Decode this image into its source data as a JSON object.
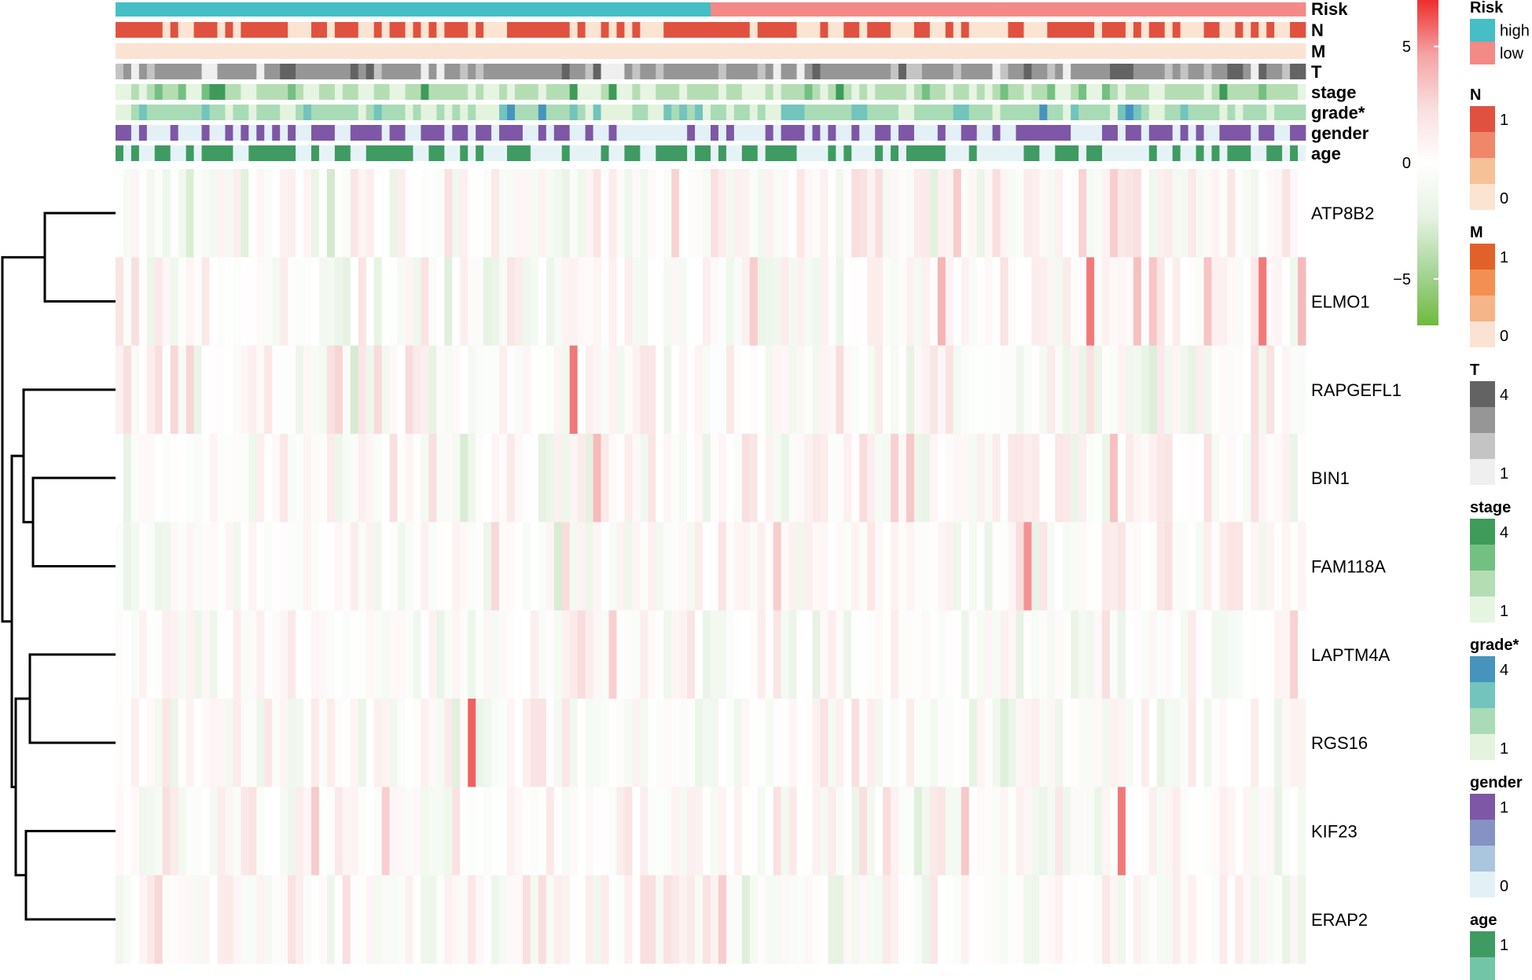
{
  "chart_data": {
    "type": "heatmap",
    "title": "",
    "n_samples": 152,
    "high_risk_count": 76,
    "tracks": [
      {
        "key": "risk",
        "label": "Risk"
      },
      {
        "key": "N",
        "label": "N"
      },
      {
        "key": "M",
        "label": "M"
      },
      {
        "key": "T",
        "label": "T"
      },
      {
        "key": "stage",
        "label": "stage"
      },
      {
        "key": "grade",
        "label": "grade*"
      },
      {
        "key": "gender",
        "label": "gender"
      },
      {
        "key": "age",
        "label": "age"
      }
    ],
    "genes": [
      "ATP8B2",
      "ELMO1",
      "RAPGEFL1",
      "BIN1",
      "FAM118A",
      "LAPTM4A",
      "RGS16",
      "KIF23",
      "ERAP2"
    ],
    "gene_bias": {
      "ATP8B2": [
        -0.25,
        0.45
      ],
      "ELMO1": [
        -0.2,
        0.25
      ],
      "RAPGEFL1": [
        0.45,
        -0.35
      ],
      "BIN1": [
        0.2,
        0.2
      ],
      "FAM118A": [
        0.05,
        0.3
      ],
      "LAPTM4A": [
        0.3,
        0.0
      ],
      "RGS16": [
        0.25,
        -0.15
      ],
      "KIF23": [
        0.25,
        -0.1
      ],
      "ERAP2": [
        0.4,
        -0.1
      ]
    },
    "expression_highlights": [
      {
        "gene": "ELMO1",
        "col": 124,
        "value": 5.5
      },
      {
        "gene": "ELMO1",
        "col": 146,
        "value": 5.5
      },
      {
        "gene": "ELMO1",
        "col": 105,
        "value": 4.0
      },
      {
        "gene": "RAPGEFL1",
        "col": 58,
        "value": 5.5
      },
      {
        "gene": "RGS16",
        "col": 45,
        "value": 6.0
      },
      {
        "gene": "BIN1",
        "col": 127,
        "value": 3.5
      },
      {
        "gene": "FAM118A",
        "col": 116,
        "value": 5.0
      },
      {
        "gene": "KIF23",
        "col": 128,
        "value": 5.5
      },
      {
        "gene": "ERAP2",
        "col": 77,
        "value": 3.0
      }
    ],
    "color_scale": {
      "min": -7,
      "max": 7,
      "colors": [
        "#6fba3c",
        "#a8d59a",
        "#e7f2e3",
        "#ffffff",
        "#f9dede",
        "#f4a3a5",
        "#ee2e2e"
      ],
      "ticks": [
        {
          "value": 5,
          "label": "5"
        },
        {
          "value": 0,
          "label": "0"
        },
        {
          "value": -5,
          "label": "−5"
        }
      ]
    },
    "legends": [
      {
        "key": "risk",
        "title": "Risk",
        "type": "categorical",
        "items": [
          {
            "label": "high",
            "color": "#45bec6"
          },
          {
            "label": "low",
            "color": "#f38a86"
          }
        ]
      },
      {
        "key": "N",
        "title": "N",
        "type": "levels",
        "top_label": "1",
        "bottom_label": "0",
        "colors": [
          "#e0523f",
          "#f0866a",
          "#f6c196",
          "#fbe4d2"
        ]
      },
      {
        "key": "M",
        "title": "M",
        "type": "levels",
        "top_label": "1",
        "bottom_label": "0",
        "colors": [
          "#e2612a",
          "#f38f52",
          "#f6b588",
          "#fbe3d4"
        ]
      },
      {
        "key": "T",
        "title": "T",
        "type": "levels",
        "top_label": "4",
        "bottom_label": "1",
        "colors": [
          "#636363",
          "#969696",
          "#c4c4c4",
          "#efefef"
        ]
      },
      {
        "key": "stage",
        "title": "stage",
        "type": "levels",
        "top_label": "4",
        "bottom_label": "1",
        "colors": [
          "#3e9b5a",
          "#74c082",
          "#b5ddb4",
          "#e6f4e2"
        ]
      },
      {
        "key": "grade",
        "title": "grade*",
        "type": "levels",
        "top_label": "4",
        "bottom_label": "1",
        "colors": [
          "#4694be",
          "#72c4bc",
          "#a9dbb7",
          "#e4f3de"
        ]
      },
      {
        "key": "gender",
        "title": "gender",
        "type": "levels",
        "top_label": "1",
        "bottom_label": "0",
        "colors": [
          "#7e57a6",
          "#8592c4",
          "#aac6df",
          "#e3f0f6"
        ]
      },
      {
        "key": "age",
        "title": "age",
        "type": "levels",
        "top_label": "1",
        "bottom_label": "",
        "colors": [
          "#3e9b62",
          "#73c5a8"
        ]
      }
    ]
  }
}
